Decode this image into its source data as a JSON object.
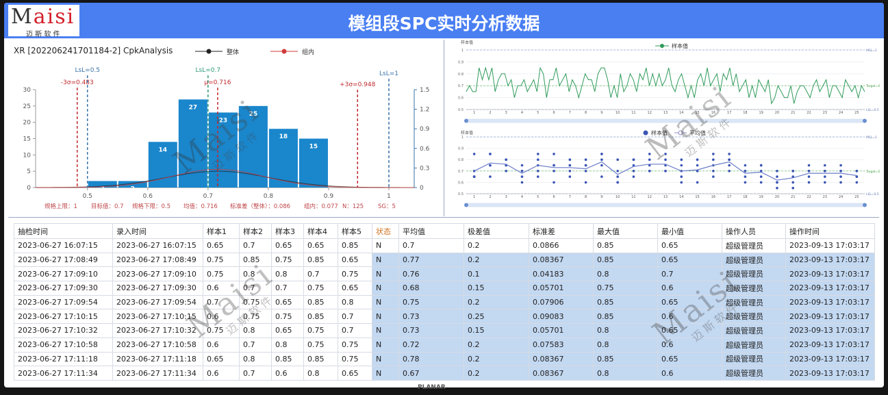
{
  "header": {
    "title": "模组段SPC实时分析数据",
    "logo_brand": "Maisi",
    "logo_sub": "迈 斯 软 件"
  },
  "watermark": {
    "brand": "Maisi",
    "sub": "迈 斯 软 件"
  },
  "bezel_label": "PLANAR",
  "histogram": {
    "title": "XR [202206241701184-2] CpkAnalysis",
    "legend": [
      {
        "name": "整体",
        "color": "#222222"
      },
      {
        "name": "组内",
        "color": "#d23a3a"
      }
    ],
    "bins": [
      0.5,
      0.55,
      0.6,
      0.65,
      0.7,
      0.75,
      0.8,
      0.85,
      0.9
    ],
    "counts": [
      2,
      2,
      14,
      27,
      23,
      25,
      18,
      15
    ],
    "color": "#1a86cc",
    "xlim": [
      0.414,
      1.042
    ],
    "xticks": [
      0.5,
      0.6,
      0.7,
      0.8,
      0.9,
      1
    ],
    "ylim": [
      0,
      30
    ],
    "yticks": [
      0,
      5,
      10,
      15,
      20,
      25,
      30
    ],
    "y2lim": [
      0,
      1.5
    ],
    "y2ticks": [
      0,
      0.3,
      0.6,
      0.9,
      1.2,
      1.5
    ],
    "mean": 0.716,
    "sd_overall": 0.086,
    "sd_within": 0.077,
    "ref_lines": [
      {
        "label": "-3σ=0.483",
        "value": 0.483,
        "color": "#c0282d"
      },
      {
        "label": "LsL=0.5",
        "value": 0.5,
        "color": "#3a72a8"
      },
      {
        "label": "LsL=0.7",
        "value": 0.7,
        "color": "#2f9a7a"
      },
      {
        "label": "μ=0.716",
        "value": 0.716,
        "color": "#c0282d"
      },
      {
        "label": "+3σ=0.948",
        "value": 0.948,
        "color": "#c0282d"
      },
      {
        "label": "LsL=1",
        "value": 1,
        "color": "#3a72a8"
      }
    ],
    "stats": [
      "规格上限：1",
      "目标值：0.7",
      "规格下限：0.5",
      "均值：0.716",
      "标准差（整体）：0.086",
      "组内：0.077",
      "N：125",
      "SG：5"
    ]
  },
  "control": {
    "sample_chart": {
      "title": "样本值",
      "legend": "样本值",
      "color": "#2e9a5a"
    },
    "xbar_chart": {
      "title": "样本值",
      "legend": [
        "样本值",
        "平均值"
      ],
      "color": "#3a54b4"
    },
    "groups": [
      1,
      2,
      3,
      4,
      5,
      6,
      7,
      8,
      9,
      10,
      11,
      12,
      13,
      14,
      15,
      16,
      17,
      18,
      19,
      20,
      21,
      22,
      23,
      24,
      25
    ],
    "samples": [
      [
        0.65,
        0.7,
        0.65,
        0.65,
        0.85
      ],
      [
        0.75,
        0.85,
        0.75,
        0.85,
        0.65
      ],
      [
        0.75,
        0.8,
        0.8,
        0.7,
        0.75
      ],
      [
        0.6,
        0.7,
        0.7,
        0.75,
        0.65
      ],
      [
        0.7,
        0.75,
        0.65,
        0.85,
        0.8
      ],
      [
        0.6,
        0.75,
        0.75,
        0.85,
        0.7
      ],
      [
        0.75,
        0.8,
        0.65,
        0.75,
        0.7
      ],
      [
        0.6,
        0.7,
        0.8,
        0.75,
        0.75
      ],
      [
        0.65,
        0.8,
        0.85,
        0.85,
        0.75
      ],
      [
        0.6,
        0.7,
        0.6,
        0.8,
        0.65
      ],
      [
        0.7,
        0.8,
        0.75,
        0.65,
        0.8
      ],
      [
        0.75,
        0.85,
        0.7,
        0.8,
        0.7
      ],
      [
        0.8,
        0.7,
        0.75,
        0.85,
        0.7
      ],
      [
        0.65,
        0.75,
        0.8,
        0.7,
        0.6
      ],
      [
        0.7,
        0.6,
        0.75,
        0.8,
        0.7
      ],
      [
        0.85,
        0.7,
        0.75,
        0.8,
        0.65
      ],
      [
        0.8,
        0.75,
        0.85,
        0.7,
        0.8
      ],
      [
        0.65,
        0.7,
        0.75,
        0.6,
        0.7
      ],
      [
        0.6,
        0.75,
        0.7,
        0.65,
        0.75
      ],
      [
        0.55,
        0.6,
        0.7,
        0.65,
        0.6
      ],
      [
        0.6,
        0.7,
        0.55,
        0.65,
        0.7
      ],
      [
        0.7,
        0.65,
        0.6,
        0.7,
        0.75
      ],
      [
        0.65,
        0.7,
        0.75,
        0.6,
        0.7
      ],
      [
        0.7,
        0.65,
        0.6,
        0.75,
        0.7
      ],
      [
        0.65,
        0.7,
        0.6,
        0.7,
        0.65
      ]
    ],
    "averages": [
      0.7,
      0.77,
      0.76,
      0.68,
      0.75,
      0.73,
      0.73,
      0.72,
      0.78,
      0.67,
      0.74,
      0.76,
      0.76,
      0.7,
      0.71,
      0.75,
      0.78,
      0.68,
      0.69,
      0.62,
      0.64,
      0.68,
      0.68,
      0.68,
      0.66
    ],
    "ylim": [
      0.5,
      1
    ],
    "yticks": [
      0.5,
      0.6,
      0.7,
      0.8,
      0.9,
      1
    ],
    "limits": [
      {
        "label": "MSL=1",
        "value": 1
      },
      {
        "label": "Target=0.7",
        "value": 0.7
      },
      {
        "label": "LSL=0.5",
        "value": 0.5
      }
    ]
  },
  "table": {
    "headers": [
      "抽检时间",
      "录入时间",
      "样本1",
      "样本2",
      "样本3",
      "样本4",
      "样本5",
      "状态",
      "平均值",
      "极差值",
      "标准差",
      "最大值",
      "最小值",
      "操作人员",
      "操作时间"
    ],
    "rows": [
      [
        "2023-06-27 16:07:15",
        "2023-06-27 16:07:15",
        "0.65",
        "0.7",
        "0.65",
        "0.65",
        "0.85",
        "N",
        "0.7",
        "0.2",
        "0.0866",
        "0.85",
        "0.65",
        "超级管理员",
        "2023-09-13 17:03:17"
      ],
      [
        "2023-06-27 17:08:49",
        "2023-06-27 17:08:49",
        "0.75",
        "0.85",
        "0.75",
        "0.85",
        "0.65",
        "N",
        "0.77",
        "0.2",
        "0.08367",
        "0.85",
        "0.65",
        "超级管理员",
        "2023-09-13 17:03:17"
      ],
      [
        "2023-06-27 17:09:10",
        "2023-06-27 17:09:10",
        "0.75",
        "0.8",
        "0.8",
        "0.7",
        "0.75",
        "N",
        "0.76",
        "0.1",
        "0.04183",
        "0.8",
        "0.7",
        "超级管理员",
        "2023-09-13 17:03:17"
      ],
      [
        "2023-06-27 17:09:30",
        "2023-06-27 17:09:30",
        "0.6",
        "0.7",
        "0.7",
        "0.75",
        "0.65",
        "N",
        "0.68",
        "0.15",
        "0.05701",
        "0.75",
        "0.6",
        "超级管理员",
        "2023-09-13 17:03:17"
      ],
      [
        "2023-06-27 17:09:54",
        "2023-06-27 17:09:54",
        "0.7",
        "0.75",
        "0.65",
        "0.85",
        "0.8",
        "N",
        "0.75",
        "0.2",
        "0.07906",
        "0.85",
        "0.65",
        "超级管理员",
        "2023-09-13 17:03:17"
      ],
      [
        "2023-06-27 17:10:15",
        "2023-06-27 17:10:15",
        "0.6",
        "0.75",
        "0.75",
        "0.85",
        "0.7",
        "N",
        "0.73",
        "0.25",
        "0.09083",
        "0.85",
        "0.6",
        "超级管理员",
        "2023-09-13 17:03:17"
      ],
      [
        "2023-06-27 17:10:32",
        "2023-06-27 17:10:32",
        "0.75",
        "0.8",
        "0.65",
        "0.75",
        "0.7",
        "N",
        "0.73",
        "0.15",
        "0.05701",
        "0.8",
        "0.65",
        "超级管理员",
        "2023-09-13 17:03:17"
      ],
      [
        "2023-06-27 17:10:58",
        "2023-06-27 17:10:58",
        "0.6",
        "0.7",
        "0.8",
        "0.75",
        "0.75",
        "N",
        "0.72",
        "0.2",
        "0.07583",
        "0.8",
        "0.6",
        "超级管理员",
        "2023-09-13 17:03:17"
      ],
      [
        "2023-06-27 17:11:18",
        "2023-06-27 17:11:18",
        "0.65",
        "0.8",
        "0.85",
        "0.85",
        "0.75",
        "N",
        "0.78",
        "0.2",
        "0.08367",
        "0.85",
        "0.65",
        "超级管理员",
        "2023-09-13 17:03:17"
      ],
      [
        "2023-06-27 17:11:34",
        "2023-06-27 17:11:34",
        "0.6",
        "0.7",
        "0.6",
        "0.8",
        "0.65",
        "N",
        "0.67",
        "0.2",
        "0.08367",
        "0.8",
        "0.6",
        "超级管理员",
        "2023-09-13 17:03:17"
      ]
    ]
  }
}
